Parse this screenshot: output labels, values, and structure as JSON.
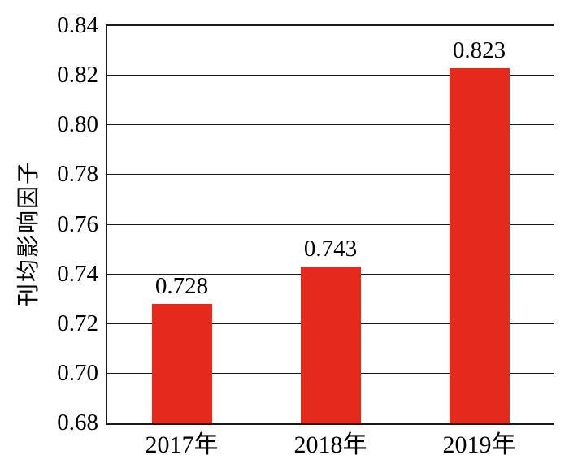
{
  "chart_data": {
    "type": "bar",
    "title": "",
    "xlabel": "",
    "ylabel": "刊均影响因子",
    "categories": [
      "2017年",
      "2018年",
      "2019年"
    ],
    "values": [
      0.728,
      0.743,
      0.823
    ],
    "value_labels": [
      "0.728",
      "0.743",
      "0.823"
    ],
    "ylim": [
      0.68,
      0.84
    ],
    "ytick_step": 0.02,
    "ytick_labels": [
      "0.68",
      "0.70",
      "0.72",
      "0.74",
      "0.76",
      "0.78",
      "0.80",
      "0.82",
      "0.84"
    ],
    "grid": true,
    "legend_position": "none",
    "bar_color": "#E5291C",
    "axis_color": "#1A1A1A",
    "text_color": "#000000",
    "background_color": "#FFFFFF"
  }
}
